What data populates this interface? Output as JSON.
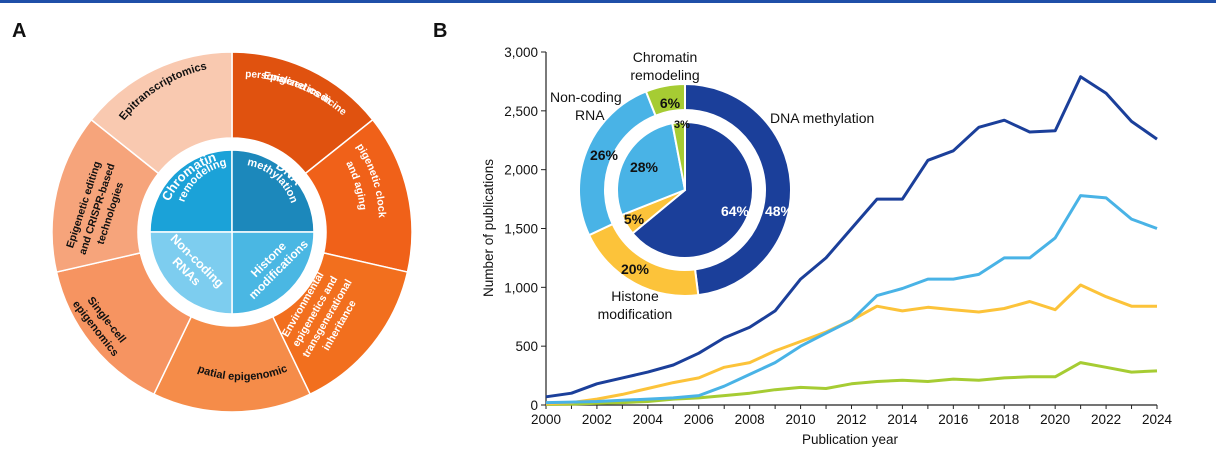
{
  "panels": {
    "a": "A",
    "b": "B"
  },
  "panel_a": {
    "outer_segments": [
      "Epigenetics in personalized medicine",
      "Epigenetic clocks and aging",
      "Environmental epigenetics and transgenerational inheritance",
      "Spatial epigenomics",
      "Single-cell epigenomics",
      "Epigenetic editing and CRISPR-based technologies",
      "Epitranscriptomics"
    ],
    "inner_segments": [
      "Chromatin remodeling",
      "DNA methylation",
      "Histone modifications",
      "Non-coding RNAs"
    ]
  },
  "chart_data": {
    "type": "line",
    "xlabel": "Publication year",
    "ylabel": "Number of publications",
    "xlim": [
      2000,
      2024
    ],
    "ylim": [
      0,
      3000
    ],
    "xticks": [
      "2000",
      "2002",
      "2004",
      "2006",
      "2008",
      "2010",
      "2012",
      "2014",
      "2016",
      "2018",
      "2020",
      "2022",
      "2024"
    ],
    "yticks": [
      "0",
      "500",
      "1,000",
      "1,500",
      "2,000",
      "2,500",
      "3,000"
    ],
    "x": [
      2000,
      2001,
      2002,
      2003,
      2004,
      2005,
      2006,
      2007,
      2008,
      2009,
      2010,
      2011,
      2012,
      2013,
      2014,
      2015,
      2016,
      2017,
      2018,
      2019,
      2020,
      2021,
      2022,
      2023,
      2024
    ],
    "series": [
      {
        "name": "DNA methylation",
        "color": "#1b3f9a",
        "values": [
          70,
          100,
          180,
          230,
          280,
          340,
          440,
          570,
          660,
          800,
          1070,
          1250,
          1500,
          1750,
          1750,
          2080,
          2160,
          2360,
          2420,
          2320,
          2330,
          2790,
          2650,
          2410,
          2260
        ]
      },
      {
        "name": "Non-coding RNA",
        "color": "#49b3e6",
        "values": [
          20,
          25,
          30,
          40,
          50,
          60,
          80,
          160,
          260,
          360,
          500,
          610,
          720,
          930,
          990,
          1070,
          1070,
          1110,
          1250,
          1250,
          1420,
          1780,
          1760,
          1580,
          1500
        ]
      },
      {
        "name": "Histone modification",
        "color": "#fcc33a",
        "values": [
          10,
          20,
          50,
          90,
          140,
          190,
          230,
          320,
          360,
          460,
          540,
          620,
          720,
          840,
          800,
          830,
          810,
          790,
          820,
          880,
          810,
          1020,
          920,
          840,
          840
        ]
      },
      {
        "name": "Chromatin remodeling",
        "color": "#a6cc33",
        "values": [
          5,
          8,
          15,
          20,
          30,
          50,
          60,
          80,
          100,
          130,
          150,
          140,
          180,
          200,
          210,
          200,
          220,
          210,
          230,
          240,
          240,
          360,
          320,
          280,
          290
        ]
      }
    ],
    "donut": {
      "outer": [
        {
          "name": "DNA methylation",
          "value": 48,
          "label": "48%"
        },
        {
          "name": "Histone modification",
          "value": 20,
          "label": "20%"
        },
        {
          "name": "Non-coding RNA",
          "value": 26,
          "label": "26%"
        },
        {
          "name": "Chromatin remodeling",
          "value": 6,
          "label": "6%"
        }
      ],
      "inner": [
        {
          "name": "DNA methylation",
          "value": 64,
          "label": "64%"
        },
        {
          "name": "Histone modification",
          "value": 5,
          "label": "5%"
        },
        {
          "name": "Non-coding RNA",
          "value": 28,
          "label": "28%"
        },
        {
          "name": "Chromatin remodeling",
          "value": 3,
          "label": "3%"
        }
      ],
      "labels": {
        "dna": "DNA methylation",
        "chromatin_1": "Chromatin",
        "chromatin_2": "remodeling",
        "ncrna_1": "Non-coding",
        "ncrna_2": "RNA",
        "histone_1": "Histone",
        "histone_2": "modification"
      }
    }
  }
}
